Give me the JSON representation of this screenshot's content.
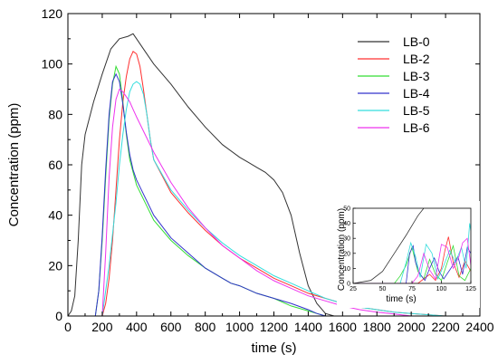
{
  "chart_data": [
    {
      "type": "line",
      "xlabel": "time (s)",
      "ylabel": "Concentration (ppm)",
      "xlim": [
        0,
        2400
      ],
      "ylim": [
        0,
        120
      ],
      "xticks": [
        0,
        200,
        400,
        600,
        800,
        1000,
        1200,
        1400,
        1600,
        1800,
        2000,
        2200,
        2400
      ],
      "yticks": [
        0,
        20,
        40,
        60,
        80,
        100,
        120
      ],
      "legend_position": "top-right",
      "series": [
        {
          "name": "LB-0",
          "color": "#333333",
          "x": [
            0,
            20,
            40,
            60,
            80,
            100,
            150,
            200,
            250,
            300,
            350,
            380,
            400,
            450,
            500,
            600,
            700,
            800,
            900,
            1000,
            1050,
            1100,
            1150,
            1200,
            1250,
            1300,
            1350,
            1400,
            1450,
            1500,
            1550
          ],
          "y": [
            0,
            2,
            8,
            30,
            60,
            72,
            85,
            96,
            106,
            110,
            111,
            112,
            110,
            105,
            100,
            92,
            83,
            75,
            68,
            63,
            61,
            59,
            57,
            54,
            49,
            40,
            25,
            12,
            5,
            1,
            0
          ]
        },
        {
          "name": "LB-2",
          "color": "#ff3030",
          "x": [
            0,
            200,
            220,
            240,
            260,
            280,
            300,
            320,
            340,
            360,
            380,
            400,
            420,
            440,
            460,
            480,
            500,
            600,
            700,
            800,
            900,
            1000,
            1100,
            1200,
            1300,
            1400,
            1500,
            1600,
            1700,
            1800,
            1900,
            2000,
            2100,
            2200
          ],
          "y": [
            0,
            0,
            5,
            15,
            30,
            50,
            70,
            85,
            95,
            102,
            105,
            104,
            99,
            90,
            80,
            70,
            62,
            49,
            41,
            34,
            28,
            23,
            19,
            15,
            12,
            9,
            7,
            5,
            3.5,
            2.5,
            1.5,
            1,
            0.5,
            0
          ]
        },
        {
          "name": "LB-3",
          "color": "#33dd33",
          "x": [
            0,
            160,
            180,
            200,
            220,
            240,
            260,
            280,
            300,
            320,
            340,
            360,
            380,
            400,
            450,
            500,
            600,
            700,
            800,
            900,
            950,
            1000,
            1100,
            1200,
            1300,
            1400,
            1450,
            1500
          ],
          "y": [
            0,
            0,
            10,
            30,
            55,
            78,
            92,
            99,
            96,
            85,
            72,
            62,
            57,
            52,
            45,
            38,
            30,
            24,
            19,
            15,
            13,
            12,
            9,
            7,
            4,
            2,
            1,
            0
          ]
        },
        {
          "name": "LB-4",
          "color": "#3333cc",
          "x": [
            0,
            160,
            180,
            200,
            220,
            240,
            260,
            280,
            300,
            320,
            340,
            360,
            380,
            400,
            450,
            500,
            600,
            700,
            800,
            900,
            950,
            1000,
            1100,
            1200,
            1300,
            1400,
            1450,
            1500
          ],
          "y": [
            0,
            0,
            10,
            32,
            58,
            80,
            93,
            96,
            93,
            84,
            73,
            64,
            58,
            54,
            47,
            40,
            31,
            25,
            19,
            15,
            13,
            12,
            9,
            7,
            5,
            2.5,
            1,
            0
          ]
        },
        {
          "name": "LB-5",
          "color": "#33dddd",
          "x": [
            0,
            200,
            240,
            280,
            300,
            320,
            340,
            360,
            380,
            400,
            420,
            440,
            460,
            480,
            500,
            600,
            700,
            800,
            900,
            1000,
            1100,
            1200,
            1300,
            1400,
            1500,
            1600,
            1700,
            1800,
            1900,
            2000,
            2100,
            2200
          ],
          "y": [
            0,
            0,
            20,
            45,
            60,
            72,
            82,
            89,
            92,
            93,
            92,
            88,
            80,
            70,
            62,
            50,
            42,
            35,
            29,
            24,
            20,
            16,
            13,
            10,
            7,
            5,
            3.5,
            2.5,
            1.5,
            1,
            0.5,
            0
          ]
        },
        {
          "name": "LB-6",
          "color": "#ee33ee",
          "x": [
            0,
            200,
            220,
            240,
            260,
            280,
            300,
            320,
            340,
            360,
            380,
            400,
            450,
            500,
            600,
            700,
            800,
            900,
            1000,
            1100,
            1200,
            1300,
            1400,
            1500,
            1600,
            1700,
            1800,
            1900,
            2000
          ],
          "y": [
            0,
            0,
            25,
            55,
            75,
            86,
            90,
            89,
            87,
            85,
            82,
            79,
            72,
            65,
            53,
            43,
            35,
            28,
            23,
            18,
            14,
            11,
            8,
            6,
            4,
            2.5,
            1.5,
            0.8,
            0
          ]
        }
      ]
    },
    {
      "type": "line",
      "xlabel": "time (s)",
      "ylabel": "Concentration (ppm)",
      "xlim": [
        25,
        125
      ],
      "ylim": [
        0,
        50
      ],
      "xticks": [
        25,
        50,
        75,
        100,
        125
      ],
      "yticks": [
        0,
        10,
        20,
        30,
        40,
        50
      ],
      "series": [
        {
          "name": "LB-0",
          "color": "#333333",
          "x": [
            25,
            40,
            50,
            60,
            70,
            80,
            85
          ],
          "y": [
            0,
            2,
            8,
            20,
            32,
            45,
            50
          ]
        },
        {
          "name": "LB-2",
          "color": "#ff3030",
          "x": [
            25,
            80,
            85,
            90,
            95,
            100,
            103,
            106,
            110,
            115,
            120,
            125
          ],
          "y": [
            0,
            0,
            3,
            6,
            2,
            10,
            22,
            31,
            14,
            4,
            15,
            8
          ]
        },
        {
          "name": "LB-3",
          "color": "#33dd33",
          "x": [
            25,
            60,
            65,
            70,
            75,
            80,
            85,
            90,
            95,
            100,
            105,
            110,
            115,
            120,
            125
          ],
          "y": [
            0,
            0,
            5,
            12,
            24,
            8,
            3,
            16,
            6,
            2,
            14,
            25,
            5,
            2,
            10
          ]
        },
        {
          "name": "LB-4",
          "color": "#3333cc",
          "x": [
            25,
            70,
            73,
            76,
            78,
            82,
            86,
            90,
            94,
            98,
            102,
            108,
            114,
            118,
            122,
            125
          ],
          "y": [
            0,
            0,
            20,
            25,
            14,
            6,
            2,
            10,
            17,
            8,
            3,
            10,
            18,
            6,
            24,
            20
          ]
        },
        {
          "name": "LB-5",
          "color": "#33dddd",
          "x": [
            25,
            65,
            70,
            74,
            78,
            82,
            87,
            92,
            97,
            102,
            107,
            112,
            117,
            121,
            124,
            125
          ],
          "y": [
            0,
            0,
            14,
            27,
            18,
            4,
            26,
            20,
            3,
            12,
            22,
            14,
            24,
            10,
            40,
            35
          ]
        },
        {
          "name": "LB-6",
          "color": "#ee33ee",
          "x": [
            25,
            75,
            80,
            85,
            90,
            95,
            100,
            105,
            110,
            115,
            118,
            122,
            125
          ],
          "y": [
            0,
            0,
            5,
            20,
            9,
            3,
            26,
            24,
            10,
            18,
            27,
            30,
            12
          ]
        }
      ]
    }
  ]
}
